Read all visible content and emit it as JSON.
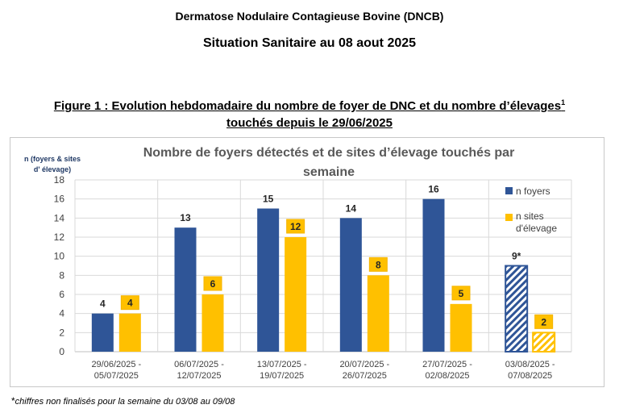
{
  "document": {
    "title": "Dermatose Nodulaire Contagieuse Bovine (DNCB)",
    "subtitle": "Situation Sanitaire au 08 aout 2025",
    "figure_caption_part1": "Figure 1 : Evolution hebdomadaire du nombre de foyer de DNC et du nombre d’élevages",
    "figure_caption_sup": "1",
    "figure_caption_part2": " touchés depuis le 29/06/2025",
    "footnote_star": "*",
    "footnote": "chiffres non finalisés pour la semaine du 03/08 au 09/08"
  },
  "colors": {
    "foyers": "#2f5597",
    "sites": "#ffc000",
    "sites_label_border": "#f4b400",
    "grid": "#d9d9d9",
    "axis": "#bfbfbf",
    "title": "#595959"
  },
  "chart_data": {
    "type": "bar",
    "title_line1": "Nombre de foyers détectés et de sites d’élevage touchés par",
    "title_line2": "semaine",
    "ylabel_line1": "n (foyers & sites",
    "ylabel_line2": "d' élevage)",
    "ylim": [
      0,
      18
    ],
    "yticks": [
      0,
      2,
      4,
      6,
      8,
      10,
      12,
      14,
      16,
      18
    ],
    "grid": true,
    "legend_position": "right-top",
    "categories": [
      [
        "29/06/2025 -",
        "05/07/2025"
      ],
      [
        "06/07/2025 -",
        "12/07/2025"
      ],
      [
        "13/07/2025 -",
        "19/07/2025"
      ],
      [
        "20/07/2025 -",
        "26/07/2025"
      ],
      [
        "27/07/2025 -",
        "02/08/2025"
      ],
      [
        "03/08/2025 -",
        "07/08/2025"
      ]
    ],
    "series": [
      {
        "name": "n foyers",
        "values": [
          4,
          13,
          15,
          14,
          16,
          9
        ],
        "labels": [
          "4",
          "13",
          "15",
          "14",
          "16",
          "9*"
        ],
        "provisional_last": true
      },
      {
        "name_line1": "n sites",
        "name_line2": "d'élevage",
        "values": [
          4,
          6,
          12,
          8,
          5,
          2
        ],
        "labels": [
          "4",
          "6",
          "12",
          "8",
          "5",
          "2"
        ],
        "provisional_last": true
      }
    ]
  }
}
